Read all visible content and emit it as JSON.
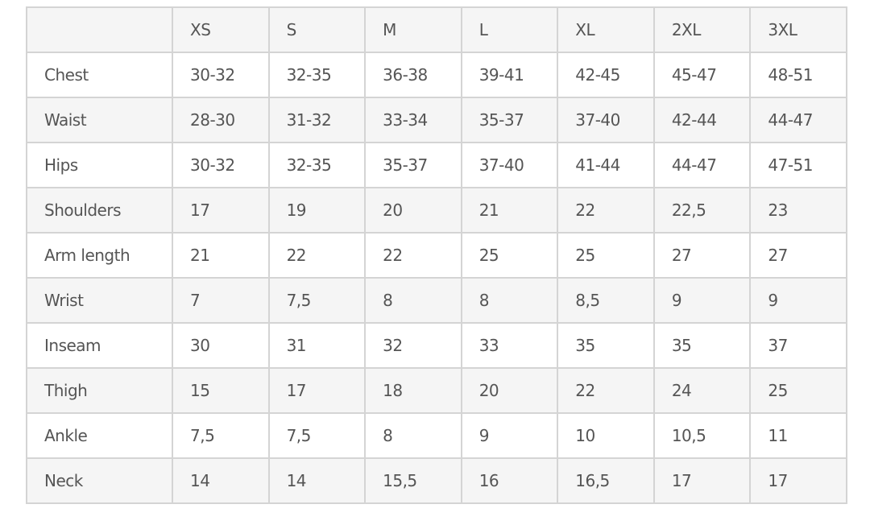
{
  "table": {
    "headers": [
      "",
      "XS",
      "S",
      "M",
      "L",
      "XL",
      "2XL",
      "3XL"
    ],
    "rows": [
      [
        "Chest",
        "30-32",
        "32-35",
        "36-38",
        "39-41",
        "42-45",
        "45-47",
        "48-51"
      ],
      [
        "Waist",
        "28-30",
        "31-32",
        "33-34",
        "35-37",
        "37-40",
        "42-44",
        "44-47"
      ],
      [
        "Hips",
        "30-32",
        "32-35",
        "35-37",
        "37-40",
        "41-44",
        "44-47",
        "47-51"
      ],
      [
        "Shoulders",
        "17",
        "19",
        "20",
        "21",
        "22",
        "22,5",
        "23"
      ],
      [
        "Arm length",
        "21",
        "22",
        "22",
        "25",
        "25",
        "27",
        "27"
      ],
      [
        "Wrist",
        "7",
        "7,5",
        "8",
        "8",
        "8,5",
        "9",
        "9"
      ],
      [
        "Inseam",
        "30",
        "31",
        "32",
        "33",
        "35",
        "35",
        "37"
      ],
      [
        "Thigh",
        "15",
        "17",
        "18",
        "20",
        "22",
        "24",
        "25"
      ],
      [
        "Ankle",
        "7,5",
        "7,5",
        "8",
        "9",
        "10",
        "10,5",
        "11"
      ],
      [
        "Neck",
        "14",
        "14",
        "15,5",
        "16",
        "16,5",
        "17",
        "17"
      ]
    ]
  }
}
